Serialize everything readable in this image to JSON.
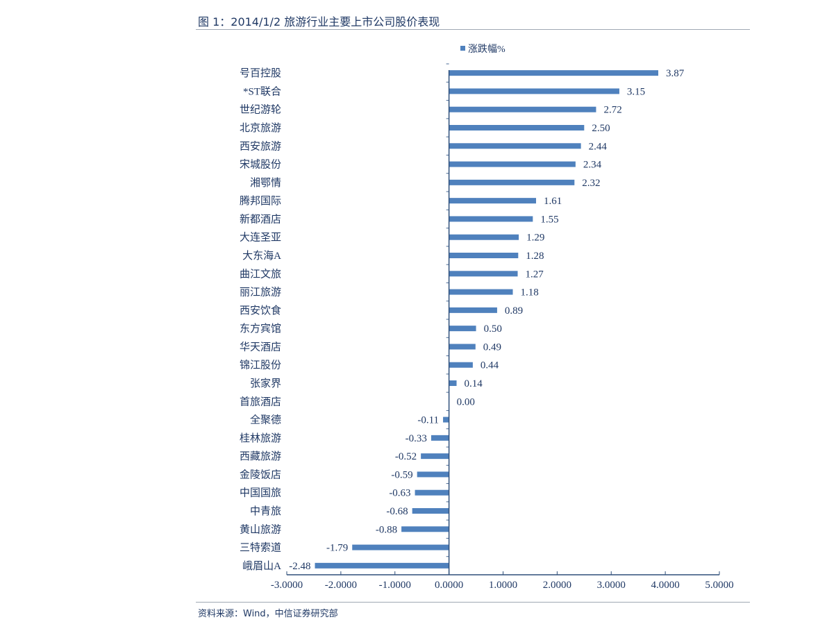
{
  "figure_title": "图 1：2014/1/2 旅游行业主要上市公司股价表现",
  "source_note": "资料来源：Wind，中信证券研究部",
  "chart_data": {
    "type": "bar",
    "orientation": "horizontal",
    "title": "",
    "xlabel": "",
    "ylabel": "",
    "legend": {
      "position": "top-center",
      "entries": [
        "涨跌幅%"
      ]
    },
    "series": [
      {
        "name": "涨跌幅%",
        "color": "#4f81bd",
        "values": [
          3.87,
          3.15,
          2.72,
          2.5,
          2.44,
          2.34,
          2.32,
          1.61,
          1.55,
          1.29,
          1.28,
          1.27,
          1.18,
          0.89,
          0.5,
          0.49,
          0.44,
          0.14,
          0.0,
          -0.11,
          -0.33,
          -0.52,
          -0.59,
          -0.63,
          -0.68,
          -0.88,
          -1.79,
          -2.48
        ]
      }
    ],
    "categories": [
      "号百控股",
      "*ST联合",
      "世纪游轮",
      "北京旅游",
      "西安旅游",
      "宋城股份",
      "湘鄂情",
      "腾邦国际",
      "新都酒店",
      "大连圣亚",
      "大东海A",
      "曲江文旅",
      "丽江旅游",
      "西安饮食",
      "东方宾馆",
      "华天酒店",
      "锦江股份",
      "张家界",
      "首旅酒店",
      "全聚德",
      "桂林旅游",
      "西藏旅游",
      "金陵饭店",
      "中国国旅",
      "中青旅",
      "黄山旅游",
      "三特索道",
      "峨眉山A"
    ],
    "data_labels": [
      "3.87",
      "3.15",
      "2.72",
      "2.50",
      "2.44",
      "2.34",
      "2.32",
      "1.61",
      "1.55",
      "1.29",
      "1.28",
      "1.27",
      "1.18",
      "0.89",
      "0.50",
      "0.49",
      "0.44",
      "0.14",
      "0.00",
      "-0.11",
      "-0.33",
      "-0.52",
      "-0.59",
      "-0.63",
      "-0.68",
      "-0.88",
      "-1.79",
      "-2.48"
    ],
    "xlim": [
      -3,
      5
    ],
    "xticks": [
      -3,
      -2,
      -1,
      0,
      1,
      2,
      3,
      4,
      5
    ],
    "xtick_labels": [
      "-3.0000",
      "-2.0000",
      "-1.0000",
      "0.0000",
      "1.0000",
      "2.0000",
      "3.0000",
      "4.0000",
      "5.0000"
    ],
    "grid": false
  }
}
